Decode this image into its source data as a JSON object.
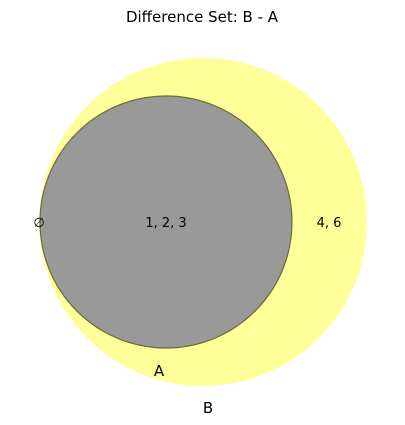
{
  "diagram": {
    "title": "Difference Set: B - A",
    "sets": {
      "a": {
        "label": "A",
        "color": "#999999"
      },
      "b": {
        "label": "B",
        "color": "#ffff99"
      }
    },
    "regions": {
      "outside": "∅",
      "a_only": "1, 2, 3",
      "b_only": "4, 6"
    }
  }
}
